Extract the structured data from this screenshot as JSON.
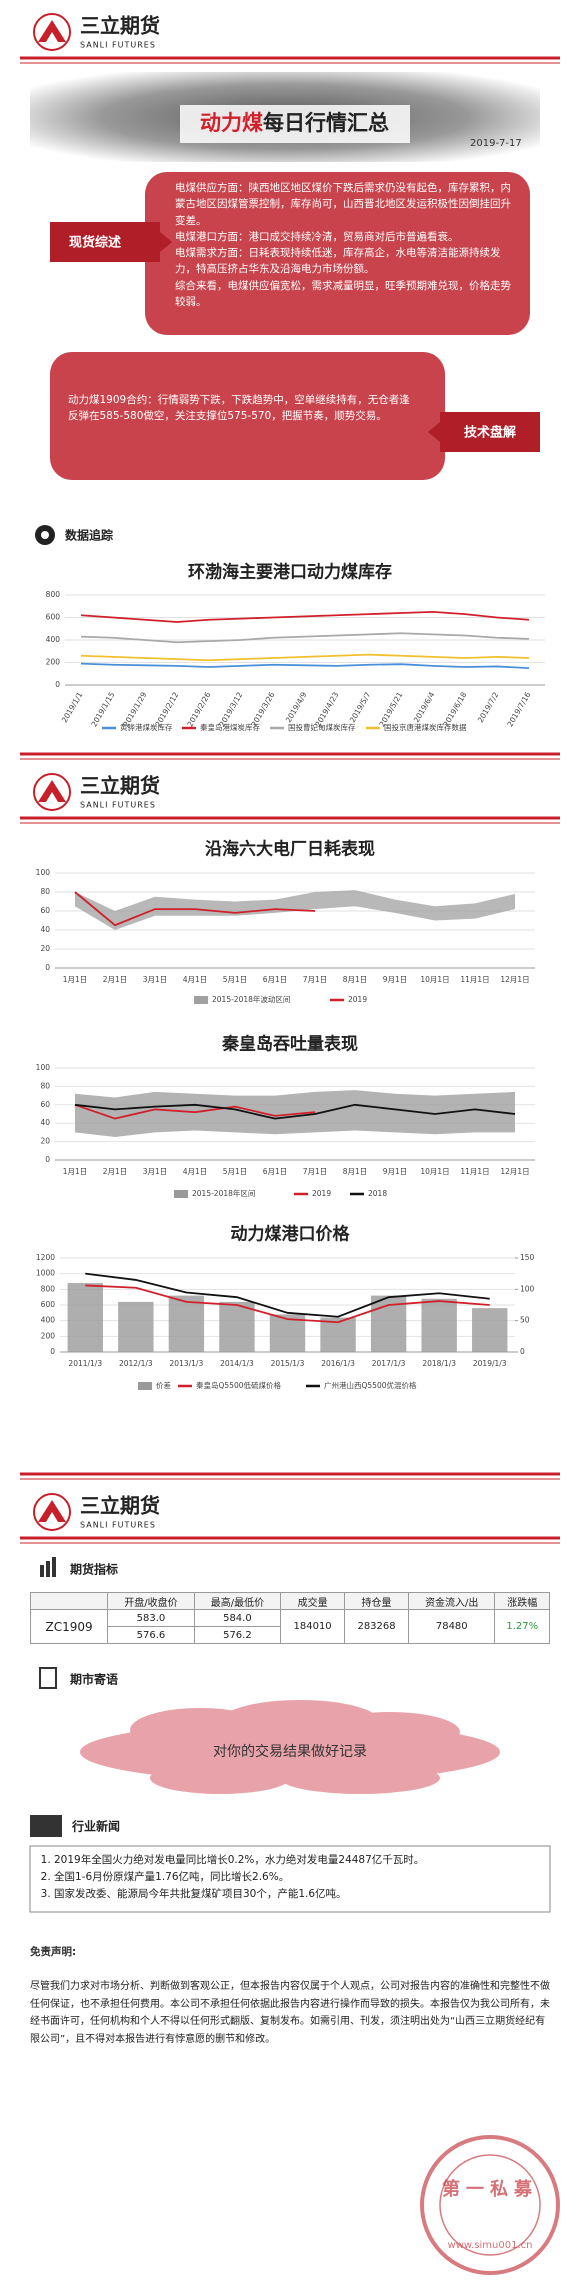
{
  "header": {
    "brand": "三立期货",
    "brand_en": "SANLI FUTURES"
  },
  "banner": {
    "title_red": "动力煤",
    "title": "每日行情汇总",
    "date": "2019-7-17"
  },
  "spot": {
    "label": "现货综述",
    "paragraphs": [
      "电煤供应方面：陕西地区地区煤价下跌后需求仍没有起色，库存累积，内蒙古地区因煤管票控制，库存尚可，山西晋北地区发运积极性因倒挂回升变差。",
      "电煤港口方面：港口成交持续冷清，贸易商对后市普遍看衰。",
      "电煤需求方面：日耗表现持续低迷，库存高企，水电等清洁能源持续发力，特高压挤占华东及沿海电力市场份额。",
      "综合来看，电煤供应偏宽松，需求减量明显，旺季预期难兑现，价格走势较弱。"
    ]
  },
  "tech": {
    "label": "技术盘解",
    "text": "动力煤1909合约：行情弱势下跌，下跌趋势中，空单继续持有，无仓者逢反弹在585-580做空，关注支撑位575-570，把握节奏，顺势交易。"
  },
  "sections": {
    "data": "数据追踪",
    "futures": "期货指标",
    "message": "期市寄语",
    "news": "行业新闻"
  },
  "chart_data": [
    {
      "type": "line",
      "title": "环渤海主要港口动力煤库存",
      "categories": [
        "2019/1/1",
        "2019/1/15",
        "2019/1/29",
        "2019/2/12",
        "2019/2/26",
        "2019/3/12",
        "2019/3/26",
        "2019/4/9",
        "2019/4/23",
        "2019/5/7",
        "2019/5/21",
        "2019/6/4",
        "2019/6/18",
        "2019/7/2",
        "2019/7/16"
      ],
      "series": [
        {
          "name": "黄骅港煤炭库存",
          "color": "#4a90d9",
          "values": [
            190,
            180,
            175,
            170,
            160,
            170,
            180,
            175,
            170,
            180,
            185,
            170,
            160,
            165,
            150
          ]
        },
        {
          "name": "秦皇岛港煤炭库存",
          "color": "#d0202a",
          "values": [
            620,
            600,
            580,
            560,
            580,
            590,
            600,
            610,
            620,
            630,
            640,
            650,
            630,
            600,
            580
          ]
        },
        {
          "name": "国投曹妃甸煤炭库存",
          "color": "#a9a9a9",
          "values": [
            430,
            420,
            400,
            380,
            390,
            400,
            420,
            430,
            440,
            450,
            460,
            450,
            440,
            420,
            410
          ]
        },
        {
          "name": "国投京唐港煤炭库存数据",
          "color": "#f0c030",
          "values": [
            260,
            250,
            240,
            230,
            220,
            230,
            240,
            250,
            260,
            270,
            260,
            250,
            240,
            250,
            240
          ]
        }
      ],
      "ylim": [
        0,
        800
      ],
      "yticks": [
        0,
        200,
        400,
        600,
        800
      ],
      "grid": true
    },
    {
      "type": "line",
      "title": "沿海六大电厂日耗表现",
      "categories": [
        "1月1日",
        "2月1日",
        "3月1日",
        "4月1日",
        "5月1日",
        "6月1日",
        "7月1日",
        "8月1日",
        "9月1日",
        "10月1日",
        "11月1日",
        "12月1日"
      ],
      "series": [
        {
          "name": "2015-2018年波动区间",
          "color": "#a0a0a0",
          "kind": "range",
          "low": [
            65,
            40,
            55,
            55,
            55,
            58,
            62,
            65,
            58,
            50,
            52,
            62
          ],
          "high": [
            80,
            60,
            75,
            72,
            70,
            72,
            80,
            82,
            72,
            65,
            68,
            78
          ]
        },
        {
          "name": "2019",
          "color": "#d0202a",
          "values": [
            80,
            45,
            62,
            62,
            58,
            62,
            60,
            null,
            null,
            null,
            null,
            null
          ]
        }
      ],
      "ylim": [
        0,
        100
      ],
      "yticks": [
        0,
        20,
        40,
        60,
        80,
        100
      ],
      "grid": true
    },
    {
      "type": "line",
      "title": "秦皇岛吞吐量表现",
      "categories": [
        "1月1日",
        "2月1日",
        "3月1日",
        "4月1日",
        "5月1日",
        "6月1日",
        "7月1日",
        "8月1日",
        "9月1日",
        "10月1日",
        "11月1日",
        "12月1日"
      ],
      "series": [
        {
          "name": "2015-2018年区间",
          "color": "#9a9a9a",
          "kind": "range",
          "low": [
            30,
            25,
            30,
            32,
            30,
            28,
            30,
            32,
            30,
            28,
            30,
            30
          ],
          "high": [
            72,
            68,
            74,
            72,
            70,
            70,
            74,
            76,
            72,
            70,
            72,
            74
          ]
        },
        {
          "name": "2019",
          "color": "#d0202a",
          "values": [
            60,
            45,
            55,
            52,
            58,
            48,
            52,
            null,
            null,
            null,
            null,
            null
          ]
        },
        {
          "name": "2018",
          "color": "#111111",
          "values": [
            60,
            55,
            58,
            60,
            55,
            45,
            50,
            60,
            55,
            50,
            55,
            50
          ]
        }
      ],
      "ylim": [
        0,
        100
      ],
      "yticks": [
        0,
        20,
        40,
        60,
        80,
        100
      ],
      "grid": true
    },
    {
      "type": "line",
      "title": "动力煤港口价格",
      "categories": [
        "2011/1/3",
        "2012/1/3",
        "2013/1/3",
        "2014/1/3",
        "2015/1/3",
        "2016/1/3",
        "2017/1/3",
        "2018/1/3",
        "2019/1/3"
      ],
      "series": [
        {
          "name": "价差",
          "color": "#9a9a9a",
          "kind": "bar",
          "axis": "y2",
          "values": [
            110,
            80,
            90,
            80,
            60,
            55,
            90,
            85,
            70
          ]
        },
        {
          "name": "秦皇岛Q5500低硫煤价格",
          "color": "#d0202a",
          "values": [
            850,
            820,
            640,
            600,
            420,
            380,
            600,
            650,
            600
          ]
        },
        {
          "name": "广州港山西Q5500优混价格",
          "color": "#111111",
          "values": [
            1000,
            920,
            760,
            700,
            500,
            450,
            700,
            750,
            680
          ]
        }
      ],
      "ylim": [
        0,
        1200
      ],
      "yticks": [
        0,
        200,
        400,
        600,
        800,
        1000,
        1200
      ],
      "y2lim": [
        0,
        150
      ],
      "y2ticks": [
        0,
        50,
        100,
        150
      ],
      "grid": true
    }
  ],
  "table": {
    "headers": [
      "开盘/收盘价",
      "最高/最低价",
      "成交量",
      "持仓量",
      "资金流入/出",
      "涨跌幅"
    ],
    "row": [
      "ZC1909",
      "583.0",
      "576.6",
      "584.0",
      "576.2",
      "184010",
      "283268",
      "78480",
      "1.27%"
    ]
  },
  "message": "对你的交易结果做好记录",
  "news": [
    "2019年全国火力绝对发电量同比增长0.2%，水力绝对发电量24487亿千瓦时。",
    "全国1-6月份原煤产量1.76亿吨，同比增长2.6%。",
    "国家发改委、能源局今年共批复煤矿项目30个，产能1.6亿吨。"
  ],
  "disclaimer": {
    "title": "免责声明:",
    "text": "尽管我们力求对市场分析、判断做到客观公正，但本报告内容仅属于个人观点，公司对报告内容的准确性和完整性不做任何保证，也不承担任何费用。本公司不承担任何依据此报告内容进行操作而导致的损失。本报告仅为我公司所有，未经书面许可，任何机构和个人不得以任何形式翻版、复制发布。如需引用、刊发，须注明出处为“山西三立期货经纪有限公司”，且不得对本报告进行有悖意愿的删节和修改。"
  },
  "stamp": {
    "name": "第一私募",
    "url": "www.simu001.cn"
  }
}
